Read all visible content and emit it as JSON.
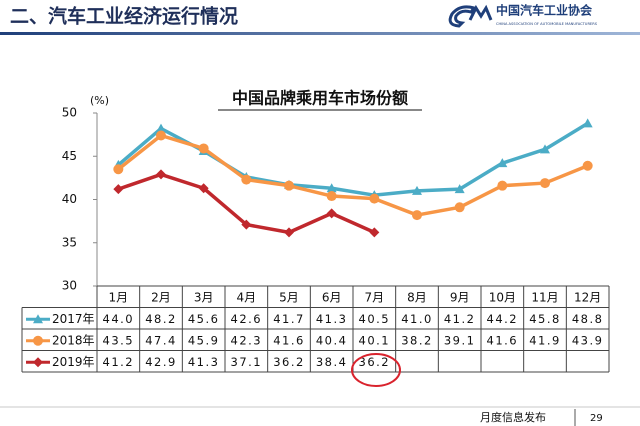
{
  "header": {
    "title": "二、汽车工业经济运行情况",
    "logo_name": "中国汽车工业协会",
    "logo_english": "CHINA ASSOCIATION OF AUTOMOBILE MANUFACTURERS"
  },
  "chart_data": {
    "type": "line",
    "title": "中国品牌乘用车市场份额",
    "y_unit": "(%)",
    "categories": [
      "1月",
      "2月",
      "3月",
      "4月",
      "5月",
      "6月",
      "7月",
      "8月",
      "9月",
      "10月",
      "11月",
      "12月"
    ],
    "ylim": [
      30,
      50
    ],
    "yticks": [
      30,
      35,
      40,
      45,
      50
    ],
    "series": [
      {
        "name": "2017年",
        "color": "#4bacc6",
        "marker": "triangle",
        "values": [
          44.0,
          48.2,
          45.6,
          42.6,
          41.7,
          41.3,
          40.5,
          41.0,
          41.2,
          44.2,
          45.8,
          48.8
        ],
        "value_labels": [
          "44.0",
          "48.2",
          "45.6",
          "42.6",
          "41.7",
          "41.3",
          "40.5",
          "41.0",
          "41.2",
          "44.2",
          "45.8",
          "48.8"
        ]
      },
      {
        "name": "2018年",
        "color": "#f79646",
        "marker": "circle",
        "values": [
          43.5,
          47.4,
          45.9,
          42.3,
          41.6,
          40.4,
          40.1,
          38.2,
          39.1,
          41.6,
          41.9,
          43.9
        ],
        "value_labels": [
          "43.5",
          "47.4",
          "45.9",
          "42.3",
          "41.6",
          "40.4",
          "40.1",
          "38.2",
          "39.1",
          "41.6",
          "41.9",
          "43.9"
        ]
      },
      {
        "name": "2019年",
        "color": "#c0282d",
        "marker": "diamond",
        "values": [
          41.2,
          42.9,
          41.3,
          37.1,
          36.2,
          38.4,
          36.2,
          null,
          null,
          null,
          null,
          null
        ],
        "value_labels": [
          "41.2",
          "42.9",
          "41.3",
          "37.1",
          "36.2",
          "38.4",
          "36.2",
          null,
          null,
          null,
          null,
          null
        ]
      }
    ]
  },
  "footer": {
    "text": "月度信息发布",
    "page": "29"
  }
}
